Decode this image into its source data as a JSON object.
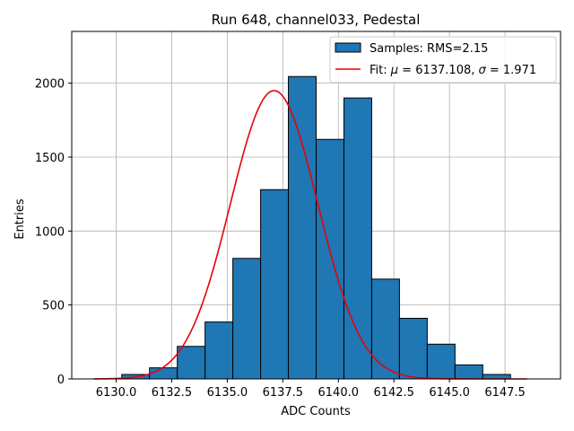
{
  "chart_data": {
    "type": "bar",
    "title": "Run 648, channel033, Pedestal",
    "xlabel": "ADC Counts",
    "ylabel": "Entries",
    "xlim": [
      6128.0,
      6150.0
    ],
    "ylim": [
      0,
      2350
    ],
    "grid": true,
    "xticks": [
      6130.0,
      6132.5,
      6135.0,
      6137.5,
      6140.0,
      6142.5,
      6145.0,
      6147.5
    ],
    "xtick_labels": [
      "6130.0",
      "6132.5",
      "6135.0",
      "6137.5",
      "6140.0",
      "6142.5",
      "6145.0",
      "6147.5"
    ],
    "yticks": [
      0,
      500,
      1000,
      1500,
      2000
    ],
    "ytick_labels": [
      "0",
      "500",
      "1000",
      "1500",
      "2000"
    ],
    "histogram": {
      "name": "Samples: RMS=2.15",
      "color": "#1f77b4",
      "edge_color": "#000000",
      "bins": [
        {
          "x0": 6129.0,
          "x1": 6130.25,
          "value": 0
        },
        {
          "x0": 6130.25,
          "x1": 6131.5,
          "value": 30
        },
        {
          "x0": 6131.5,
          "x1": 6132.75,
          "value": 75
        },
        {
          "x0": 6132.75,
          "x1": 6134.0,
          "value": 220
        },
        {
          "x0": 6134.0,
          "x1": 6135.25,
          "value": 385
        },
        {
          "x0": 6135.25,
          "x1": 6136.5,
          "value": 815
        },
        {
          "x0": 6136.5,
          "x1": 6137.75,
          "value": 1280
        },
        {
          "x0": 6137.75,
          "x1": 6139.0,
          "value": 2045
        },
        {
          "x0": 6139.0,
          "x1": 6140.25,
          "value": 1620
        },
        {
          "x0": 6140.25,
          "x1": 6141.5,
          "value": 1900
        },
        {
          "x0": 6141.5,
          "x1": 6142.75,
          "value": 675
        },
        {
          "x0": 6142.75,
          "x1": 6144.0,
          "value": 410
        },
        {
          "x0": 6144.0,
          "x1": 6145.25,
          "value": 235
        },
        {
          "x0": 6145.25,
          "x1": 6146.5,
          "value": 95
        },
        {
          "x0": 6146.5,
          "x1": 6147.75,
          "value": 30
        }
      ]
    },
    "fit": {
      "name": "Fit: μ = 6137.108, σ = 1.971",
      "color": "#e8000b",
      "mu": 6137.108,
      "sigma": 1.971,
      "amplitude": 1950,
      "x_range": [
        6129.0,
        6148.5
      ]
    },
    "legend": {
      "placement": "top-right",
      "entries": [
        {
          "label": "Samples: RMS=2.15",
          "kind": "patch",
          "color": "#1f77b4"
        },
        {
          "label_prefix": "Fit: ",
          "mu_symbol": "μ",
          "mu_text": " = 6137.108, ",
          "sigma_symbol": "σ",
          "sigma_text": " = 1.971",
          "kind": "line",
          "color": "#e8000b"
        }
      ]
    }
  }
}
